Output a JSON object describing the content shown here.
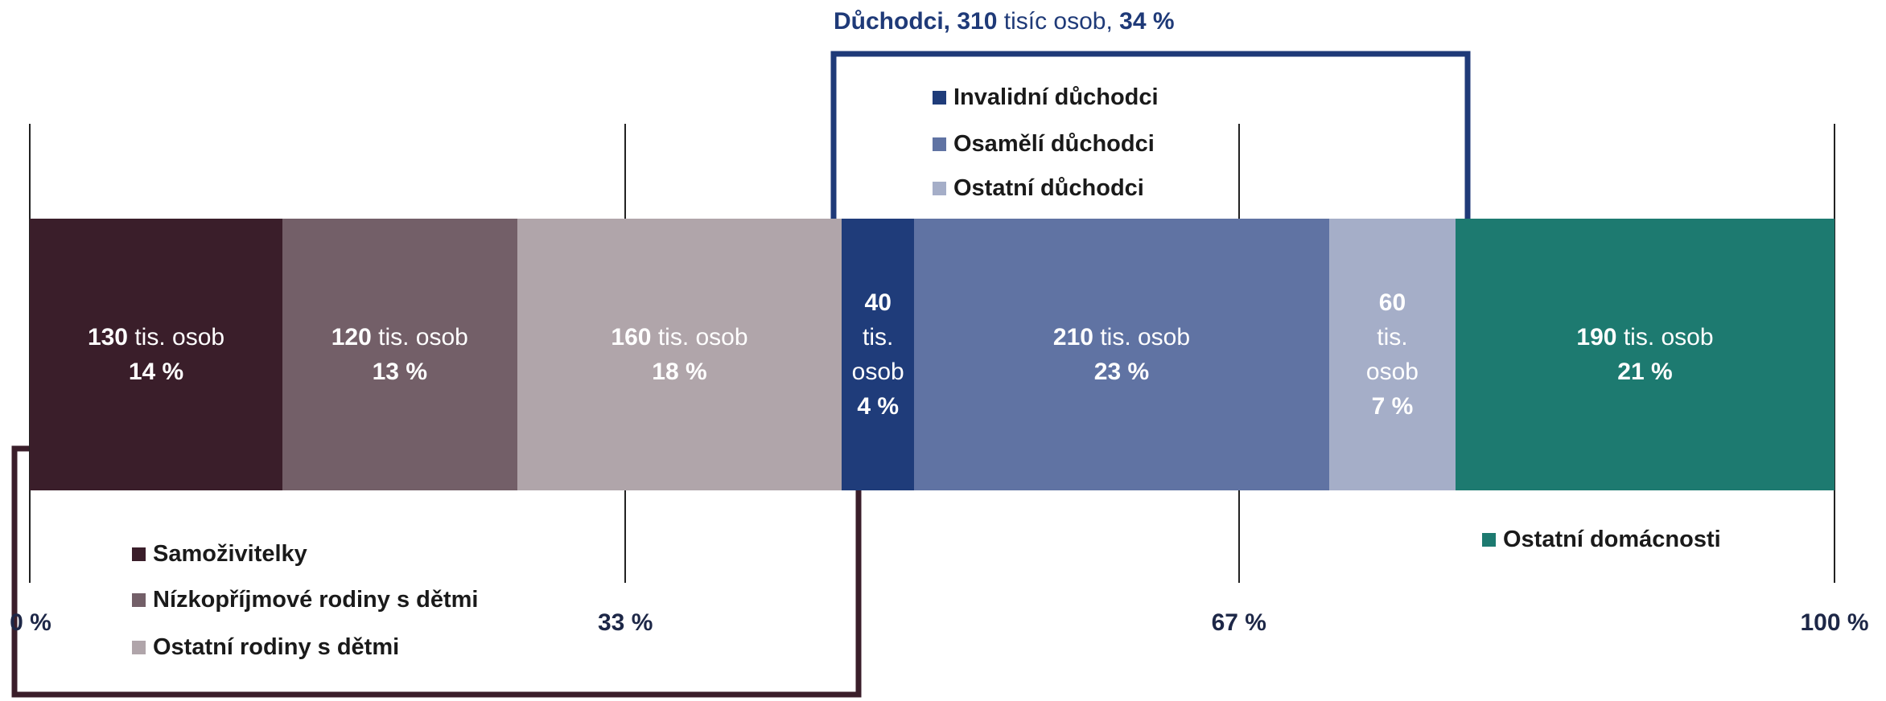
{
  "chart_data": {
    "type": "stacked-bar-100",
    "value_unit": "tis. osob",
    "series": [
      {
        "name": "Samoživitelky",
        "color": "#3a1e2a",
        "values": [
          130
        ],
        "shares": [
          14
        ],
        "share_labels": [
          "14 %"
        ]
      },
      {
        "name": "Nízkopříjmové rodiny s dětmi",
        "color": "#735f68",
        "values": [
          120
        ],
        "shares": [
          13
        ],
        "share_labels": [
          "13 %"
        ]
      },
      {
        "name": "Ostatní rodiny s dětmi",
        "color": "#b0a5aa",
        "values": [
          160
        ],
        "shares": [
          18
        ],
        "share_labels": [
          "18 %"
        ]
      },
      {
        "name": "Invalidní důchodci",
        "color": "#1f3c7a",
        "values": [
          40
        ],
        "shares": [
          4
        ],
        "share_labels": [
          "4 %"
        ]
      },
      {
        "name": "Osamělí důchodci",
        "color": "#6073a3",
        "values": [
          210
        ],
        "shares": [
          23
        ],
        "share_labels": [
          "23 %"
        ]
      },
      {
        "name": "Ostatní důchodci",
        "color": "#a5aec8",
        "values": [
          60
        ],
        "shares": [
          7
        ],
        "share_labels": [
          "7 %"
        ]
      },
      {
        "name": "Ostatní domácnosti",
        "color": "#1d7a70",
        "values": [
          190
        ],
        "shares": [
          21
        ],
        "share_labels": [
          "21 %"
        ]
      }
    ],
    "group_label_parts": [
      "Důchodci, 310",
      "tisíc osob,",
      "34 %"
    ],
    "xlim": [
      0,
      100
    ],
    "xticks": [
      {
        "value": 0,
        "label": "0 %"
      },
      {
        "value": 33,
        "label": "33 %"
      },
      {
        "value": 67,
        "label": "67 %"
      },
      {
        "value": 100,
        "label": "100 %"
      }
    ]
  }
}
